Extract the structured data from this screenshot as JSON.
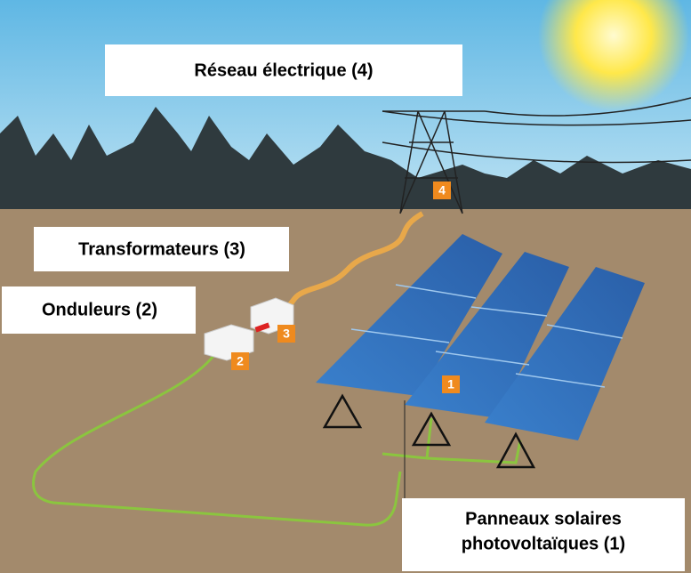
{
  "labels": {
    "grid": {
      "text": "Réseau électrique (4)",
      "badge": "4"
    },
    "transformers": {
      "text": "Transformateurs (3)",
      "badge": "3"
    },
    "inverters": {
      "text": "Onduleurs (2)",
      "badge": "2"
    },
    "panels": {
      "lines": [
        "Panneaux solaires",
        "photovoltaïques (1)"
      ],
      "badge": "1"
    }
  }
}
